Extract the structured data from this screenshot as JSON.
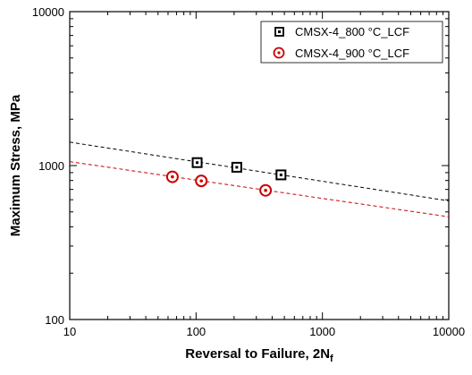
{
  "chart_data": {
    "type": "scatter",
    "xscale": "log",
    "yscale": "log",
    "xlim": [
      10,
      10000
    ],
    "ylim": [
      100,
      10000
    ],
    "xlabel": "Reversal to Failure, 2N",
    "xlabel_subscript": "f",
    "ylabel": "Maximum Stress, MPa",
    "xticks": [
      "10",
      "100",
      "1000",
      "10000"
    ],
    "yticks": [
      "100",
      "1000",
      "10000"
    ],
    "grid": false,
    "legend_position": "top-right",
    "series": [
      {
        "name": "CMSX-4_800 °C_LCF",
        "marker": "square",
        "color": "#000000",
        "points": [
          [
            102,
            1045
          ],
          [
            210,
            975
          ],
          [
            470,
            870
          ]
        ],
        "fit": {
          "x": [
            10,
            10000
          ],
          "y": [
            1420,
            590
          ],
          "style": "dashed"
        }
      },
      {
        "name": "CMSX-4_900 °C_LCF",
        "marker": "circle",
        "color": "#cc0000",
        "points": [
          [
            65,
            845
          ],
          [
            110,
            795
          ],
          [
            355,
            690
          ]
        ],
        "fit": {
          "x": [
            10,
            10000
          ],
          "y": [
            1060,
            465
          ],
          "style": "dashed"
        }
      }
    ]
  }
}
